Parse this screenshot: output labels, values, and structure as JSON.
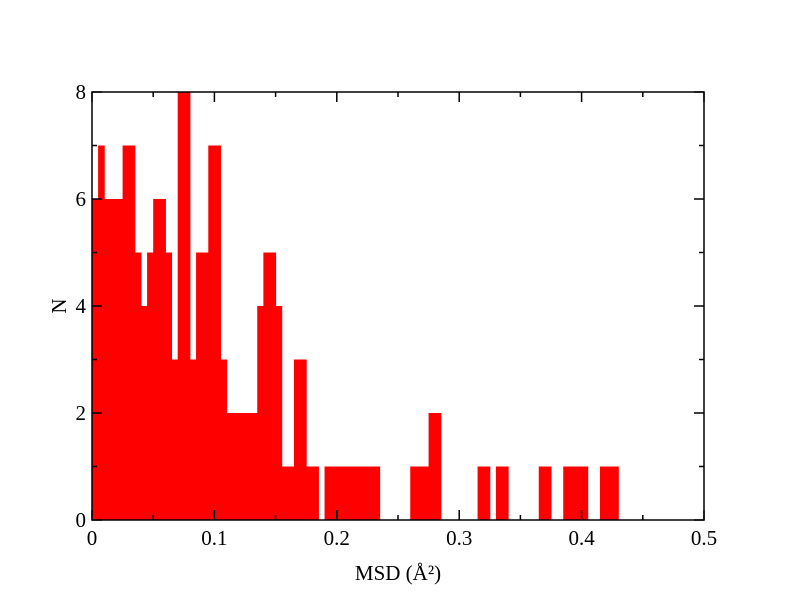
{
  "chart_data": {
    "type": "histogram",
    "xlabel": "MSD (Å²)",
    "ylabel": "N",
    "color": "#ff0000",
    "bins": [
      0,
      0.005,
      0.01,
      0.015,
      0.02,
      0.025,
      0.03,
      0.035,
      0.04,
      0.045,
      0.05,
      0.055,
      0.06,
      0.065,
      0.07,
      0.075,
      0.08,
      0.085,
      0.09,
      0.095,
      0.1,
      0.105,
      0.11,
      0.115,
      0.12,
      0.125,
      0.13,
      0.135,
      0.14,
      0.145,
      0.15,
      0.155,
      0.16,
      0.165,
      0.17,
      0.175,
      0.18,
      0.185,
      0.19,
      0.195,
      0.2,
      0.205,
      0.21,
      0.215,
      0.22,
      0.225,
      0.23,
      0.235,
      0.24,
      0.245,
      0.25,
      0.255,
      0.26,
      0.265,
      0.27,
      0.275,
      0.28,
      0.285,
      0.29,
      0.295,
      0.3,
      0.305,
      0.31,
      0.315,
      0.32,
      0.325,
      0.33,
      0.335,
      0.34,
      0.345,
      0.35,
      0.355,
      0.36,
      0.365,
      0.37,
      0.375,
      0.38,
      0.385,
      0.39,
      0.395,
      0.4,
      0.405,
      0.41,
      0.415,
      0.42,
      0.425,
      0.43
    ],
    "values": [
      6,
      7,
      6,
      6,
      6,
      7,
      7,
      5,
      4,
      5,
      6,
      6,
      5,
      3,
      8,
      8,
      3,
      5,
      5,
      7,
      7,
      3,
      2,
      2,
      2,
      2,
      2,
      4,
      5,
      5,
      4,
      1,
      1,
      3,
      3,
      1,
      1,
      0,
      1,
      1,
      1,
      1,
      1,
      1,
      1,
      1,
      1,
      0,
      0,
      0,
      0,
      0,
      1,
      1,
      1,
      2,
      2,
      0,
      0,
      0,
      0,
      0,
      0,
      1,
      1,
      0,
      1,
      1,
      0,
      0,
      0,
      0,
      0,
      1,
      1,
      0,
      0,
      1,
      1,
      1,
      1,
      0,
      0,
      1,
      1,
      1
    ],
    "xlim": [
      0,
      0.5
    ],
    "ylim": [
      0,
      8
    ],
    "xticks": [
      0,
      0.1,
      0.2,
      0.3,
      0.4,
      0.5
    ],
    "yticks": [
      0,
      2,
      4,
      6,
      8
    ],
    "xminorticks": [
      0.05,
      0.15,
      0.25,
      0.35,
      0.45
    ],
    "yminorticks": [
      1,
      3,
      5,
      7
    ]
  }
}
